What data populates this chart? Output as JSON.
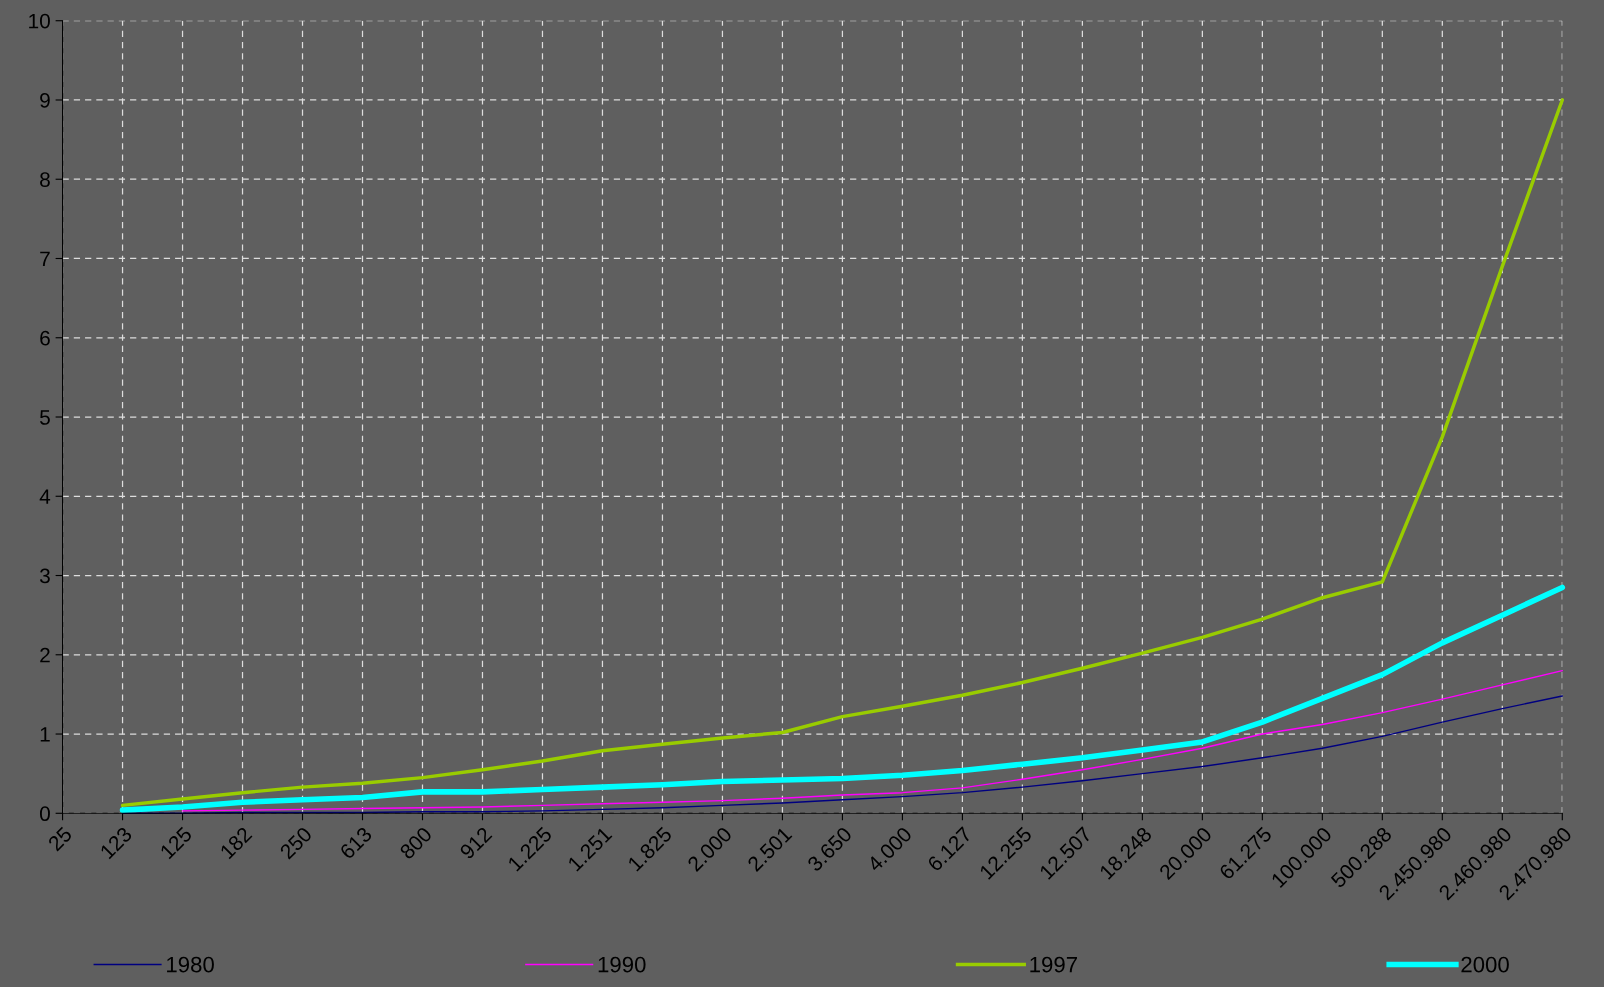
{
  "chart_data": {
    "type": "line",
    "categories": [
      "25",
      "123",
      "125",
      "182",
      "250",
      "613",
      "800",
      "912",
      "1.225",
      "1.251",
      "1.825",
      "2.000",
      "2.501",
      "3.650",
      "4.000",
      "6.127",
      "12.255",
      "12.507",
      "18.248",
      "20.000",
      "61.275",
      "100.000",
      "500.288",
      "2.450.980",
      "2.460.980",
      "2.470.980"
    ],
    "series": [
      {
        "name": "1980",
        "color": "#000080",
        "values": [
          null,
          0,
          0,
          0.01,
          0.01,
          0.01,
          0.02,
          0.02,
          0.03,
          0.05,
          0.07,
          0.1,
          0.13,
          0.17,
          0.21,
          0.26,
          0.33,
          0.41,
          0.5,
          0.59,
          0.7,
          0.82,
          0.97,
          1.15,
          1.32,
          1.48
        ]
      },
      {
        "name": "1990",
        "color": "#ff00ff",
        "values": [
          null,
          null,
          0.03,
          0.04,
          0.05,
          0.06,
          0.07,
          0.08,
          0.1,
          0.12,
          0.14,
          0.16,
          0.19,
          0.23,
          0.26,
          0.32,
          0.43,
          0.55,
          0.68,
          0.82,
          1.0,
          1.12,
          1.27,
          1.44,
          1.62,
          1.8
        ]
      },
      {
        "name": "1997",
        "color": "#99cc00",
        "values": [
          null,
          0.1,
          0.18,
          0.26,
          0.33,
          0.38,
          0.45,
          0.55,
          0.66,
          0.79,
          0.87,
          0.95,
          1.02,
          1.22,
          1.35,
          1.49,
          1.65,
          1.83,
          2.02,
          2.22,
          2.45,
          2.72,
          2.92,
          4.75,
          6.9,
          9.0
        ]
      },
      {
        "name": "2000",
        "color": "#00ffff",
        "values": [
          null,
          0.04,
          0.08,
          0.14,
          0.17,
          0.2,
          0.27,
          0.27,
          0.3,
          0.33,
          0.36,
          0.4,
          0.42,
          0.44,
          0.48,
          0.54,
          0.62,
          0.7,
          0.8,
          0.9,
          1.15,
          1.45,
          1.75,
          2.15,
          2.5,
          2.85
        ]
      }
    ],
    "ylim": [
      0,
      10
    ],
    "yticks": [
      0,
      1,
      2,
      3,
      4,
      5,
      6,
      7,
      8,
      9,
      10
    ],
    "grid": true,
    "legend": "bottom",
    "line_style": "solid",
    "marker": "none"
  }
}
